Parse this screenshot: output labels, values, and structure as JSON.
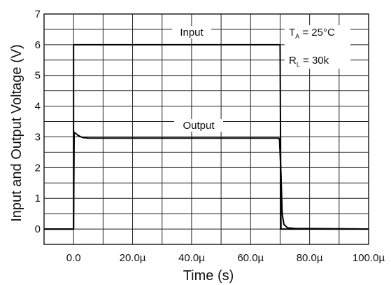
{
  "chart_data": {
    "type": "line",
    "xlabel": "Time (s)",
    "ylabel": "Input and Output Voltage (V)",
    "xlim": [
      -10,
      100
    ],
    "ylim": [
      -0.5,
      7
    ],
    "x_ticks": [
      0,
      20,
      40,
      60,
      80,
      100
    ],
    "x_tick_labels": [
      "0.0",
      "20.0µ",
      "40.0µ",
      "60.0µ",
      "80.0µ",
      "100.0µ"
    ],
    "y_ticks": [
      0,
      1,
      2,
      3,
      4,
      5,
      6,
      7
    ],
    "y_tick_labels": [
      "0",
      "1",
      "2",
      "3",
      "4",
      "5",
      "6",
      "7"
    ],
    "grid": true,
    "series": [
      {
        "name": "Input",
        "color": "#000000",
        "points": [
          [
            -10,
            0
          ],
          [
            0,
            0
          ],
          [
            0,
            6
          ],
          [
            70,
            6
          ],
          [
            70.3,
            0
          ],
          [
            100,
            0
          ]
        ]
      },
      {
        "name": "Output",
        "color": "#000000",
        "points": [
          [
            -10,
            0
          ],
          [
            0,
            0
          ],
          [
            0.2,
            3.15
          ],
          [
            1.5,
            3.05
          ],
          [
            3,
            2.98
          ],
          [
            5,
            2.96
          ],
          [
            69.6,
            2.96
          ],
          [
            69.8,
            2.9
          ],
          [
            70.3,
            1.8
          ],
          [
            70.7,
            0.5
          ],
          [
            71.3,
            0.15
          ],
          [
            72.5,
            0.04
          ],
          [
            75,
            0.02
          ],
          [
            100,
            0
          ]
        ]
      }
    ],
    "annotations": {
      "ta_prefix": "T",
      "ta_sub": "A",
      "ta_value": " = 25°C",
      "rl_prefix": "R",
      "rl_sub": "L",
      "rl_value": " = 30k"
    }
  }
}
